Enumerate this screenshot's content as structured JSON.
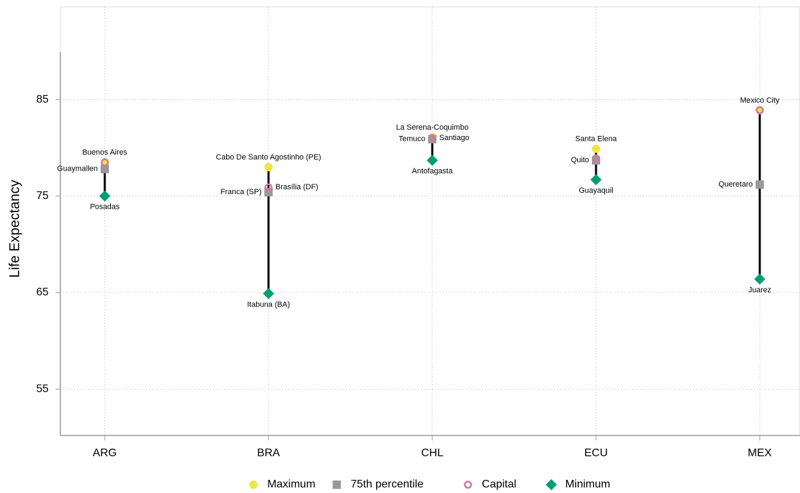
{
  "chart_data": {
    "type": "range-dot",
    "y_label": "Life Expectancy",
    "categories": [
      "ARG",
      "BRA",
      "CHL",
      "ECU",
      "MEX"
    ],
    "ylim": [
      50.2,
      94.6
    ],
    "yticks": [
      55,
      65,
      75,
      85
    ],
    "grid": true,
    "legend": "bottom",
    "series": [
      {
        "name": "Maximum",
        "color": "#f0e442",
        "marker": "circle",
        "label_side": "above",
        "values": [
          78.5,
          78.0,
          81.1,
          79.9,
          83.9
        ],
        "labels": [
          "Buenos Aires",
          "Cabo De Santo Agostinho (PE)",
          "La Serena-Coquimbo",
          "Santa Elena",
          "Mexico City"
        ]
      },
      {
        "name": "75th percentile",
        "color": "#999999",
        "marker": "square",
        "label_side": "left",
        "values": [
          77.8,
          75.4,
          80.9,
          78.7,
          76.2
        ],
        "labels": [
          "Guaymallen",
          "Franca (SP)",
          "Temuco",
          "Quito",
          "Queretaro"
        ]
      },
      {
        "name": "Capital",
        "color": "#cc79a7",
        "marker": "ring",
        "label_side": "right",
        "values": [
          78.5,
          75.9,
          81.0,
          78.9,
          83.9
        ],
        "labels": [
          null,
          "Brasília (DF)",
          "Santiago",
          null,
          null
        ]
      },
      {
        "name": "Minimum",
        "color": "#009e73",
        "marker": "diamond",
        "label_side": "below",
        "values": [
          75.0,
          64.9,
          78.7,
          76.7,
          66.4
        ],
        "labels": [
          "Posadas",
          "Itabuna (BA)",
          "Antofagasta",
          "Guayaquil",
          "Juarez"
        ]
      }
    ]
  }
}
